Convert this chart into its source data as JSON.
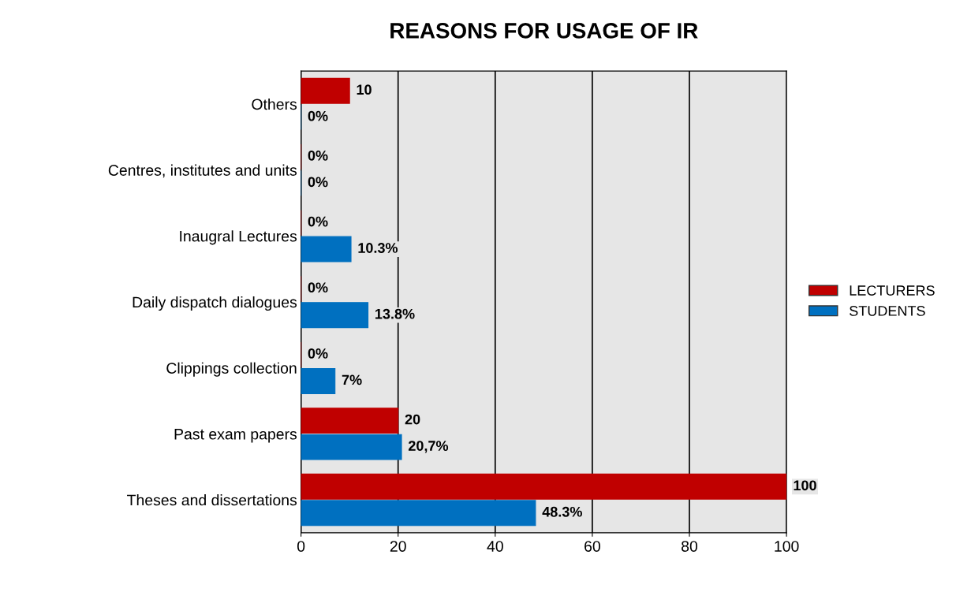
{
  "chart_data": {
    "type": "bar",
    "orientation": "horizontal",
    "title": "REASONS FOR USAGE OF IR",
    "categories": [
      "Others",
      "Centres, institutes and units",
      "Inaugral Lectures",
      "Daily dispatch dialogues",
      "Clippings collection",
      "Past exam papers",
      "Theses and dissertations"
    ],
    "series": [
      {
        "name": "LECTURERS",
        "color": "#c00000",
        "values": [
          10,
          0,
          0,
          0,
          0,
          20,
          100
        ],
        "value_labels": [
          "10",
          "0%",
          "0%",
          "0%",
          "0%",
          "20",
          "100"
        ]
      },
      {
        "name": "STUDENTS",
        "color": "#0070c0",
        "values": [
          0,
          0,
          10.3,
          13.8,
          7,
          20.7,
          48.3
        ],
        "value_labels": [
          "0%",
          "0%",
          "10.3%",
          "13.8%",
          "7%",
          "20,7%",
          "48.3%"
        ]
      }
    ],
    "xlim": [
      0,
      100
    ],
    "xticks": [
      0,
      20,
      40,
      60,
      80,
      100
    ],
    "grid": "x",
    "legend": "right"
  }
}
